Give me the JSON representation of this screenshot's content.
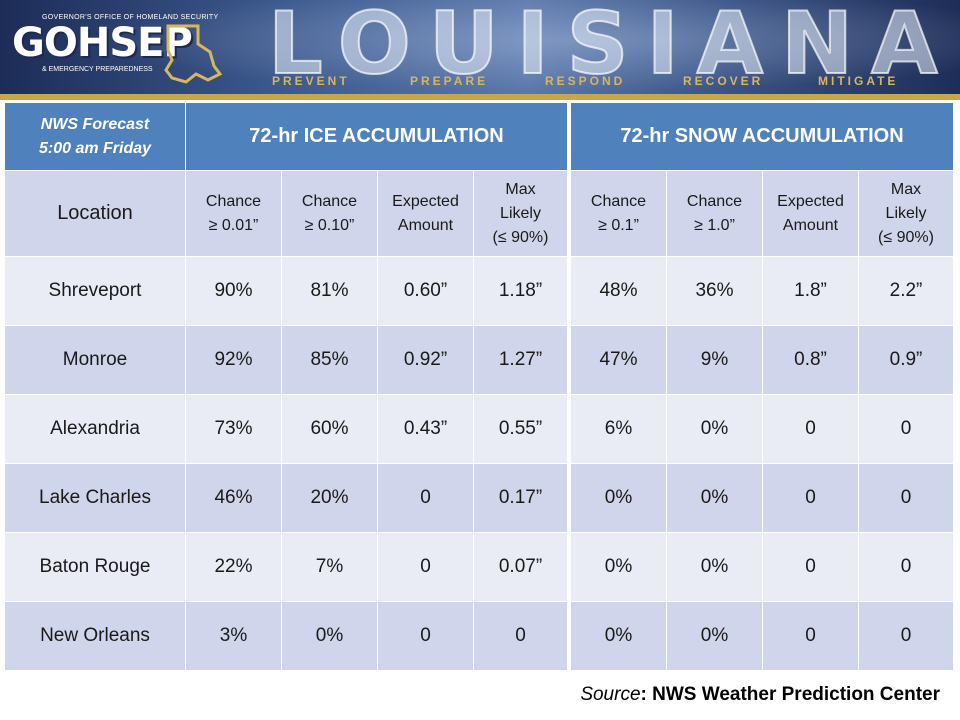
{
  "banner": {
    "org_small": "GOVERNOR'S OFFICE OF HOMELAND SECURITY",
    "org_name": "GOHSEP",
    "org_sub": "& EMERGENCY PREPAREDNESS",
    "state_word": "LOUISIANA",
    "motto": [
      "PREVENT",
      "PREPARE",
      "RESPOND",
      "RECOVER",
      "MITIGATE"
    ],
    "accent_color": "#c9a64a"
  },
  "forecast_label": [
    "NWS Forecast",
    "5:00 am Friday"
  ],
  "location_header": "Location",
  "ice": {
    "title": "72-hr ICE ACCUMULATION",
    "columns": [
      [
        "Chance",
        "≥ 0.01”"
      ],
      [
        "Chance",
        "≥ 0.10”"
      ],
      [
        "Expected",
        "Amount"
      ],
      [
        "Max",
        "Likely",
        "(≤ 90%)"
      ]
    ]
  },
  "snow": {
    "title": "72-hr SNOW ACCUMULATION",
    "columns": [
      [
        "Chance",
        "≥ 0.1”"
      ],
      [
        "Chance",
        "≥ 1.0”"
      ],
      [
        "Expected",
        "Amount"
      ],
      [
        "Max",
        "Likely",
        "(≤ 90%)"
      ]
    ]
  },
  "rows": [
    {
      "location": "Shreveport",
      "ice": [
        "90%",
        "81%",
        "0.60”",
        "1.18”"
      ],
      "snow": [
        "48%",
        "36%",
        "1.8”",
        "2.2”"
      ]
    },
    {
      "location": "Monroe",
      "ice": [
        "92%",
        "85%",
        "0.92”",
        "1.27”"
      ],
      "snow": [
        "47%",
        "9%",
        "0.8”",
        "0.9”"
      ]
    },
    {
      "location": "Alexandria",
      "ice": [
        "73%",
        "60%",
        "0.43”",
        "0.55”"
      ],
      "snow": [
        "6%",
        "0%",
        "0",
        "0"
      ]
    },
    {
      "location": "Lake Charles",
      "ice": [
        "46%",
        "20%",
        "0",
        "0.17”"
      ],
      "snow": [
        "0%",
        "0%",
        "0",
        "0"
      ]
    },
    {
      "location": "Baton Rouge",
      "ice": [
        "22%",
        "7%",
        "0",
        "0.07”"
      ],
      "snow": [
        "0%",
        "0%",
        "0",
        "0"
      ]
    },
    {
      "location": "New Orleans",
      "ice": [
        "3%",
        "0%",
        "0",
        "0"
      ],
      "snow": [
        "0%",
        "0%",
        "0",
        "0"
      ]
    }
  ],
  "source": {
    "label": "Source",
    "sep": ": ",
    "name": "NWS Weather Prediction Center"
  },
  "colors": {
    "header_blue": "#4f81bd",
    "row_dark": "#cfd5ea",
    "row_light": "#e9ebf5"
  }
}
